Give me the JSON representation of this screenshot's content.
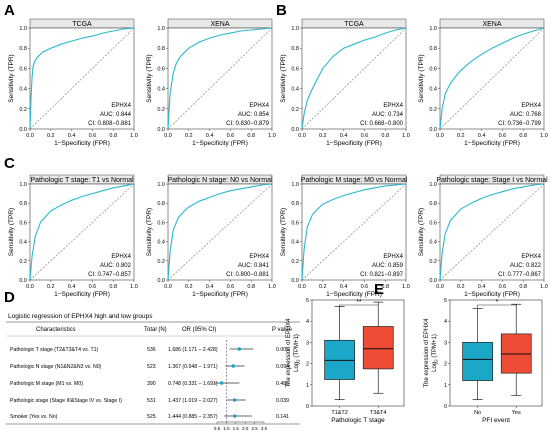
{
  "panel_letters": [
    "A",
    "B",
    "C",
    "D",
    "E"
  ],
  "roc_common": {
    "xlabel": "1−Specificity (FPR)",
    "ylabel": "Sensitivity (TPR)",
    "ticks": [
      "0.0",
      "0.2",
      "0.4",
      "0.6",
      "0.8",
      "1.0"
    ],
    "gene": "EPHX4",
    "curve_color": "#2ab7cf"
  },
  "forest": {
    "title": "Logistic regression of EPHX4 high and low groups",
    "headers": {
      "characteristics": "Characteristics",
      "total": "Total (N)",
      "or": "OR (95% CI)",
      "p": "P value"
    },
    "axis_ticks": [
      "0.5",
      "1.0",
      "1.5",
      "2.0",
      "2.5",
      "3.0"
    ],
    "rows": [
      {
        "label": "Pathologic T stage (T2&T3&T4 vs. T1)",
        "n": "536",
        "or_text": "1.686 (1.171 – 2.428)",
        "p": "0.005"
      },
      {
        "label": "Pathologic N stage (N1&N2&N3 vs. N0)",
        "n": "523",
        "or_text": "1.367 (0.948 – 1.971)",
        "p": "0.094"
      },
      {
        "label": "Pathologic M stage (M1 vs. M0)",
        "n": "390",
        "or_text": "0.748 (0.331 – 1.691)",
        "p": "0.485"
      },
      {
        "label": "Pathologic stage (Stage III&Stage IV vs. Stage I)",
        "n": "531",
        "or_text": "1.437 (1.019 – 2.027)",
        "p": "0.039"
      },
      {
        "label": "Smoker (Yes vs. No)",
        "n": "525",
        "or_text": "1.444 (0.885 – 2.357)",
        "p": "0.141"
      }
    ]
  },
  "colors": {
    "low_box": "#1ba8c8",
    "high_box": "#ef4c36",
    "marker": "#1ba8c8"
  },
  "chart_data": [
    {
      "type": "line",
      "panel": "A",
      "title": "TCGA",
      "auc_text": "AUC: 0.844",
      "ci_text": "CI: 0.808−0.881",
      "auc": 0.844,
      "xlim": [
        0,
        1
      ],
      "ylim": [
        0,
        1
      ],
      "x": [
        0,
        0.01,
        0.02,
        0.03,
        0.05,
        0.08,
        0.12,
        0.2,
        0.3,
        0.4,
        0.5,
        0.6,
        0.7,
        0.8,
        0.9,
        1.0
      ],
      "y": [
        0,
        0.3,
        0.52,
        0.62,
        0.68,
        0.72,
        0.76,
        0.8,
        0.84,
        0.87,
        0.9,
        0.92,
        0.95,
        0.97,
        0.99,
        1.0
      ]
    },
    {
      "type": "line",
      "panel": "A",
      "title": "XENA",
      "auc_text": "AUC: 0.854",
      "ci_text": "CI: 0.830−0.879",
      "auc": 0.854,
      "xlim": [
        0,
        1
      ],
      "ylim": [
        0,
        1
      ],
      "x": [
        0,
        0.02,
        0.05,
        0.08,
        0.12,
        0.2,
        0.3,
        0.4,
        0.5,
        0.6,
        0.7,
        0.8,
        0.9,
        1.0
      ],
      "y": [
        0,
        0.35,
        0.55,
        0.65,
        0.72,
        0.8,
        0.86,
        0.9,
        0.93,
        0.95,
        0.97,
        0.98,
        0.99,
        1.0
      ]
    },
    {
      "type": "line",
      "panel": "B",
      "title": "TCGA",
      "auc_text": "AUC: 0.734",
      "ci_text": "CI: 0.668−0.800",
      "auc": 0.734,
      "xlim": [
        0,
        1
      ],
      "ylim": [
        0,
        1
      ],
      "x": [
        0,
        0.02,
        0.05,
        0.1,
        0.15,
        0.2,
        0.25,
        0.3,
        0.4,
        0.5,
        0.6,
        0.7,
        0.8,
        0.9,
        1.0
      ],
      "y": [
        0,
        0.15,
        0.28,
        0.4,
        0.5,
        0.6,
        0.66,
        0.72,
        0.8,
        0.84,
        0.88,
        0.91,
        0.95,
        0.98,
        1.0
      ]
    },
    {
      "type": "line",
      "panel": "B",
      "title": "XENA",
      "auc_text": "AUC: 0.768",
      "ci_text": "CI: 0.736−0.799",
      "auc": 0.768,
      "xlim": [
        0,
        1
      ],
      "ylim": [
        0,
        1
      ],
      "x": [
        0,
        0.02,
        0.05,
        0.1,
        0.15,
        0.2,
        0.3,
        0.4,
        0.5,
        0.6,
        0.7,
        0.8,
        0.9,
        1.0
      ],
      "y": [
        0,
        0.2,
        0.35,
        0.45,
        0.52,
        0.58,
        0.67,
        0.74,
        0.8,
        0.85,
        0.9,
        0.94,
        0.97,
        1.0
      ]
    },
    {
      "type": "line",
      "panel": "C",
      "title": "Pathologic T stage: T1 vs Normal",
      "auc_text": "AUC: 0.802",
      "ci_text": "CI: 0.747−0.857",
      "auc": 0.802,
      "xlim": [
        0,
        1
      ],
      "ylim": [
        0,
        1
      ],
      "x": [
        0,
        0.02,
        0.05,
        0.1,
        0.15,
        0.2,
        0.3,
        0.4,
        0.5,
        0.6,
        0.7,
        0.8,
        0.9,
        1.0
      ],
      "y": [
        0,
        0.25,
        0.45,
        0.6,
        0.66,
        0.72,
        0.78,
        0.83,
        0.87,
        0.9,
        0.93,
        0.96,
        0.98,
        1.0
      ]
    },
    {
      "type": "line",
      "panel": "C",
      "title": "Pathologic N stage: N0 vs Normal",
      "auc_text": "AUC: 0.841",
      "ci_text": "CI: 0.800−0.881",
      "auc": 0.841,
      "xlim": [
        0,
        1
      ],
      "ylim": [
        0,
        1
      ],
      "x": [
        0,
        0.02,
        0.05,
        0.1,
        0.15,
        0.2,
        0.3,
        0.4,
        0.5,
        0.6,
        0.7,
        0.8,
        0.9,
        1.0
      ],
      "y": [
        0,
        0.3,
        0.52,
        0.65,
        0.71,
        0.76,
        0.82,
        0.86,
        0.9,
        0.93,
        0.95,
        0.97,
        0.99,
        1.0
      ]
    },
    {
      "type": "line",
      "panel": "C",
      "title": "Pathologic M stage: M0 vs Normal",
      "auc_text": "AUC: 0.859",
      "ci_text": "CI: 0.821−0.897",
      "auc": 0.859,
      "xlim": [
        0,
        1
      ],
      "ylim": [
        0,
        1
      ],
      "x": [
        0,
        0.02,
        0.05,
        0.1,
        0.15,
        0.2,
        0.3,
        0.4,
        0.5,
        0.6,
        0.7,
        0.8,
        0.9,
        1.0
      ],
      "y": [
        0,
        0.32,
        0.55,
        0.68,
        0.74,
        0.79,
        0.84,
        0.88,
        0.91,
        0.94,
        0.96,
        0.98,
        0.99,
        1.0
      ]
    },
    {
      "type": "line",
      "panel": "C",
      "title": "Pathologic stage: Stage I vs Normal",
      "auc_text": "AUC: 0.822",
      "ci_text": "CI: 0.777−0.867",
      "auc": 0.822,
      "xlim": [
        0,
        1
      ],
      "ylim": [
        0,
        1
      ],
      "x": [
        0,
        0.02,
        0.05,
        0.1,
        0.15,
        0.2,
        0.3,
        0.4,
        0.5,
        0.6,
        0.7,
        0.8,
        0.9,
        1.0
      ],
      "y": [
        0,
        0.28,
        0.48,
        0.62,
        0.68,
        0.74,
        0.8,
        0.85,
        0.89,
        0.92,
        0.95,
        0.97,
        0.99,
        1.0
      ]
    },
    {
      "type": "forest",
      "panel": "D",
      "categories": [
        "Pathologic T stage (T2&T3&T4 vs. T1)",
        "Pathologic N stage (N1&N2&N3 vs. N0)",
        "Pathologic M stage (M1 vs. M0)",
        "Pathologic stage (Stage III&Stage IV vs. Stage I)",
        "Smoker (Yes vs. No)"
      ],
      "or": [
        1.686,
        1.367,
        0.748,
        1.437,
        1.444
      ],
      "lower": [
        1.171,
        0.948,
        0.331,
        1.019,
        0.885
      ],
      "upper": [
        2.428,
        1.971,
        1.691,
        2.027,
        2.357
      ],
      "xlim": [
        0.5,
        3.0
      ]
    },
    {
      "type": "box",
      "panel": "E",
      "xlabel": "Pathologic T stage",
      "ylabel": "The expression of EPHX4",
      "ylabel2": "Log",
      "ylabel2_sub": "2",
      "ylabel2_rest": " (TPM+1)",
      "categories": [
        "T1&T2",
        "T3&T4"
      ],
      "significance": "**",
      "ylim": [
        0,
        5
      ],
      "yticks": [
        "0",
        "1",
        "2",
        "3",
        "4",
        "5"
      ],
      "series": [
        {
          "name": "T1&T2",
          "min": 0.3,
          "q1": 1.25,
          "median": 2.15,
          "q3": 3.1,
          "max": 4.7
        },
        {
          "name": "T3&T4",
          "min": 0.6,
          "q1": 1.75,
          "median": 2.7,
          "q3": 3.75,
          "max": 4.9
        }
      ]
    },
    {
      "type": "box",
      "panel": "E",
      "xlabel": "PFI event",
      "ylabel": "The expression of EPHX4",
      "ylabel2": "Log",
      "ylabel2_sub": "2",
      "ylabel2_rest": " (TPM+1)",
      "categories": [
        "No",
        "Yes"
      ],
      "significance": "*",
      "ylim": [
        0,
        5
      ],
      "yticks": [
        "0",
        "1",
        "2",
        "3",
        "4",
        "5"
      ],
      "series": [
        {
          "name": "No",
          "min": 0.3,
          "q1": 1.2,
          "median": 2.2,
          "q3": 3.0,
          "max": 4.6
        },
        {
          "name": "Yes",
          "min": 0.5,
          "q1": 1.55,
          "median": 2.45,
          "q3": 3.4,
          "max": 4.8
        }
      ]
    }
  ]
}
